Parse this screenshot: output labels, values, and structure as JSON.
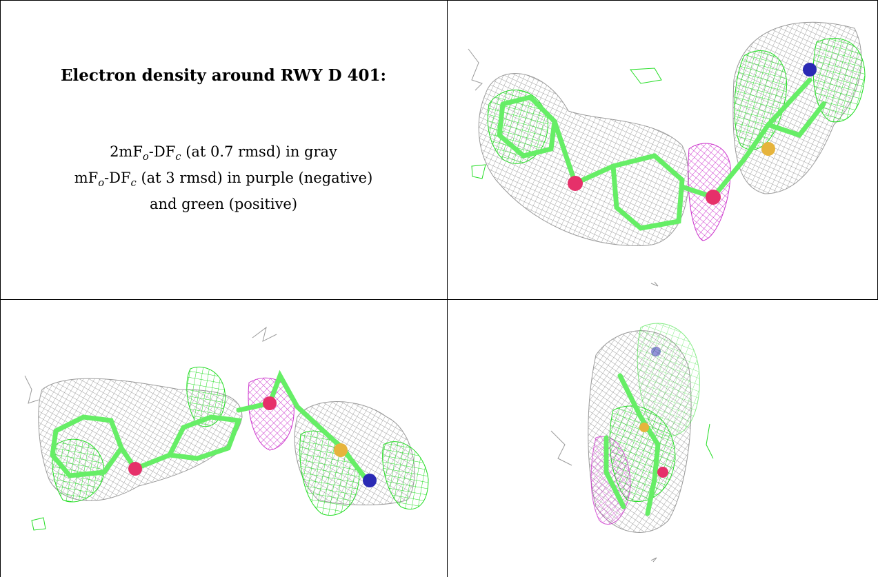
{
  "caption": {
    "title": "Electron density around RWY D 401:",
    "line1": {
      "prefix": "2mF",
      "sub1": "o",
      "mid": "-DF",
      "sub2": "c",
      "suffix": " (at 0.7 rmsd) in gray"
    },
    "line2": {
      "prefix": "mF",
      "sub1": "o",
      "mid": "-DF",
      "sub2": "c",
      "suffix": " (at 3 rmsd) in purple (negative)"
    },
    "line3": "and green (positive)"
  },
  "panels": [
    {
      "id": "top-right",
      "view": "ligand density view 1"
    },
    {
      "id": "bottom-left",
      "view": "ligand density view 2"
    },
    {
      "id": "bottom-right",
      "view": "ligand density view 3"
    }
  ],
  "colors": {
    "mesh_gray": "#9a9a9a",
    "mesh_purple": "#cc33cc",
    "mesh_green": "#22dd22",
    "stick_green": "#66ee66",
    "atom_oxygen": "#e6306a",
    "atom_sulfur": "#e6b43c",
    "atom_nitrogen": "#2a2ab4",
    "grid_line": "#000000"
  }
}
